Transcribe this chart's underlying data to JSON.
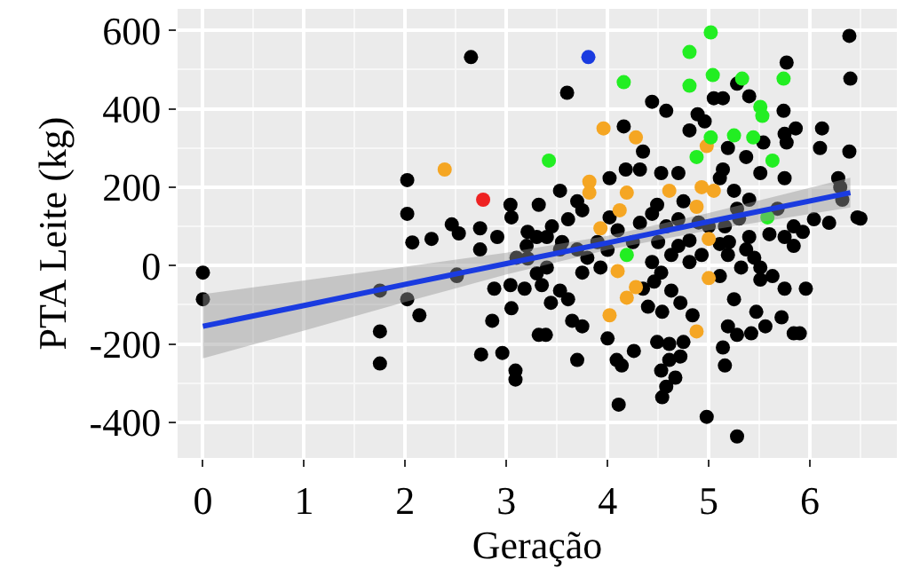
{
  "chart_data": {
    "type": "scatter",
    "xlabel": "Geração",
    "ylabel": "PTA Leite (kg)",
    "xlim": [
      -0.25,
      6.86
    ],
    "ylim": [
      -491,
      655
    ],
    "xticks": [
      0,
      1,
      2,
      3,
      4,
      5,
      6
    ],
    "yticks": [
      -400,
      -200,
      0,
      200,
      400,
      600
    ],
    "grid": true,
    "marker": "circle",
    "series": [
      {
        "color": "#000000",
        "x": [
          2.65,
          2.02,
          2.02,
          2.07,
          2.26,
          2.46,
          2.53,
          2.74,
          3.04,
          3.05,
          2.91,
          0,
          0,
          1.75,
          1.75,
          1.75,
          2.02,
          2.14,
          2.51,
          2.51,
          2.74,
          2.88,
          3.04,
          3.18,
          2.86,
          3.05,
          2.75,
          2.96,
          3.09,
          3.09,
          3.32,
          6.39,
          6.4,
          3.6,
          5.77,
          4.44,
          4.58,
          5.28,
          5.4,
          5.14,
          5.74,
          4.16,
          4.96,
          5.86,
          6.12,
          6.39,
          5.77,
          6.1,
          4.35,
          4.18,
          5.19,
          5.37,
          4.53,
          4.7,
          5.51,
          5.14,
          5.75,
          3.53,
          4.02,
          4.32,
          3.32,
          3.7,
          4.49,
          4.75,
          5.25,
          5.28,
          6.28,
          6.32,
          6.47,
          6.04,
          5.84,
          6.19,
          4.32,
          4.44,
          4.7,
          3.21,
          3.4,
          3.61,
          3.75,
          4.02,
          4.58,
          5.16,
          5.4,
          5.68,
          5.93,
          5.11,
          4.81,
          4.89,
          5.05,
          5.54,
          5.75,
          3.3,
          3.35,
          3.53,
          3.44,
          3.61,
          3.65,
          3.75,
          3.39,
          3.7,
          4.0,
          4.09,
          4.14,
          4.26,
          4.11,
          4.4,
          4.54,
          4.49,
          4.61,
          4.75,
          4.72,
          4.61,
          4.53,
          4.67,
          4.58,
          4.54,
          4.98,
          5.28,
          5.14,
          5.16,
          5.19,
          5.28,
          5.42,
          5.25,
          5.47,
          5.56,
          5.72,
          5.84,
          5.9,
          5.75,
          5.96,
          5.51,
          4.63,
          4.72,
          4.84,
          4.46,
          4.35,
          3.93,
          3.75,
          5.75,
          5.84,
          5.19,
          5.37,
          5.4,
          5.51,
          5.63,
          5.11,
          4.81,
          4.63,
          4.44,
          4.53,
          4.81,
          4.93,
          5.11,
          3.21,
          3.53,
          3.7,
          5.32,
          3.4,
          3.1,
          3.2,
          3.3,
          3.45,
          3.55,
          3.8,
          3.9,
          4.0,
          4.1,
          4.25,
          4.5,
          4.7,
          4.9,
          5.0,
          5.2,
          5.3,
          5.45,
          5.6,
          6.3,
          6.5
        ],
        "values": [
          532,
          218,
          132,
          59,
          68,
          105,
          82,
          95,
          155,
          123,
          73,
          -18,
          -86,
          -64,
          -168,
          -250,
          -86,
          -127,
          -23,
          -27,
          41,
          -59,
          -50,
          -59,
          -141,
          -109,
          -227,
          -223,
          -268,
          -291,
          -177,
          586,
          477,
          441,
          518,
          418,
          395,
          464,
          432,
          427,
          395,
          355,
          368,
          350,
          350,
          291,
          314,
          300,
          291,
          245,
          300,
          277,
          236,
          236,
          236,
          245,
          223,
          191,
          223,
          245,
          155,
          164,
          155,
          164,
          191,
          145,
          223,
          168,
          123,
          118,
          100,
          109,
          109,
          132,
          118,
          86,
          73,
          118,
          141,
          123,
          100,
          100,
          168,
          145,
          86,
          223,
          345,
          386,
          427,
          314,
          336,
          73,
          -50,
          -64,
          -95,
          -86,
          -141,
          -155,
          -177,
          -241,
          -186,
          -241,
          -255,
          -218,
          -355,
          -105,
          -118,
          -195,
          -200,
          -195,
          -232,
          -241,
          -268,
          -286,
          -309,
          -336,
          -386,
          -436,
          -209,
          -255,
          -155,
          -177,
          -173,
          -86,
          -118,
          -155,
          -132,
          -173,
          -173,
          -59,
          -59,
          -36,
          -64,
          -95,
          -127,
          -41,
          -59,
          -5,
          -18,
          73,
          50,
          27,
          41,
          73,
          -5,
          -27,
          -27,
          9,
          27,
          9,
          -18,
          64,
          27,
          55,
          18,
          41,
          41,
          -5,
          -5,
          20,
          50,
          -20,
          100,
          60,
          20,
          60,
          40,
          90,
          60,
          60,
          50,
          110,
          100,
          60,
          120,
          20,
          80,
          200,
          120
        ]
      },
      {
        "color": "#f5a623",
        "x": [
          2.39,
          3.96,
          4.28,
          4.98,
          3.82,
          3.82,
          4.19,
          4.61,
          4.93,
          5.05,
          4.12,
          4.88,
          3.93,
          5.0,
          4.1,
          4.28,
          4.19,
          4.02,
          5.0,
          4.88
        ],
        "values": [
          245,
          350,
          327,
          305,
          214,
          186,
          186,
          191,
          200,
          191,
          141,
          150,
          95,
          68,
          -14,
          -55,
          -82,
          -127,
          -32,
          -168
        ]
      },
      {
        "color": "#22ee22",
        "x": [
          5.02,
          4.81,
          4.16,
          4.81,
          5.04,
          5.33,
          5.74,
          3.42,
          5.51,
          5.53,
          5.25,
          5.44,
          5.02,
          5.63,
          4.88,
          5.58,
          4.19
        ],
        "values": [
          595,
          545,
          468,
          459,
          486,
          477,
          477,
          268,
          405,
          382,
          332,
          327,
          327,
          268,
          277,
          123,
          27
        ]
      },
      {
        "color": "#ee2222",
        "x": [
          2.77
        ],
        "values": [
          168
        ]
      },
      {
        "color": "#1a3be0",
        "x": [
          3.81
        ],
        "values": [
          532
        ]
      },
      {
        "type": "line",
        "marker": "none",
        "color": "#1a3be0",
        "x": [
          0,
          1,
          2,
          3,
          4,
          5,
          6.4
        ],
        "values": [
          -155,
          -102,
          -48,
          5,
          58,
          112,
          186
        ],
        "lower": [
          -237,
          -166,
          -93,
          -23,
          40,
          90,
          148
        ],
        "upper": [
          -73,
          -38,
          -3,
          33,
          76,
          134,
          224
        ]
      }
    ]
  }
}
